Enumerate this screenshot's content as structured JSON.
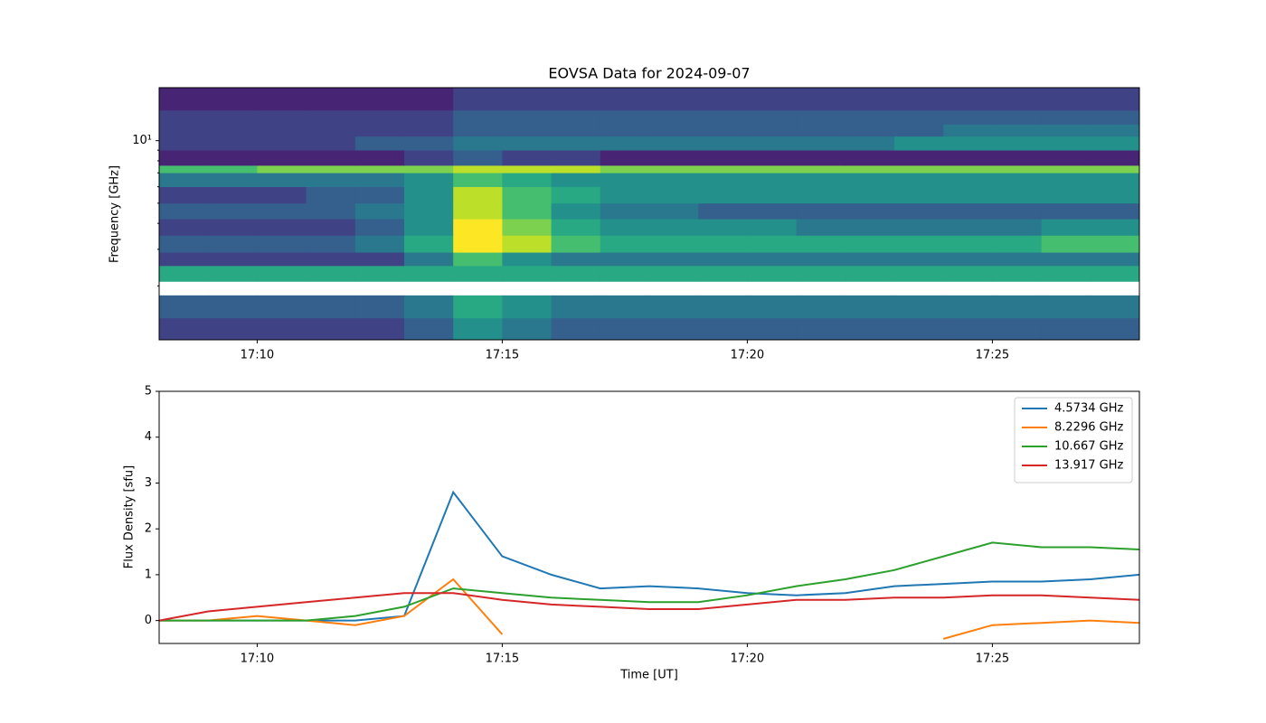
{
  "chart_data": [
    {
      "type": "heatmap",
      "title": "EOVSA Data for 2024-09-07",
      "ylabel": "Frequency [GHz]",
      "yscale": "log",
      "colormap": "viridis",
      "zlim": [
        0,
        10
      ],
      "xlim": [
        "17:08",
        "17:28"
      ],
      "xticks": [
        "17:10",
        "17:15",
        "17:20",
        "17:25"
      ],
      "ylim": [
        1.1,
        18
      ],
      "yticks": [
        {
          "value": 10,
          "label": "10¹"
        }
      ],
      "yminorticks": [
        2,
        3,
        4,
        5,
        6,
        7,
        8,
        9
      ],
      "x_bins": [
        "17:08",
        "17:09",
        "17:10",
        "17:11",
        "17:12",
        "17:13",
        "17:14",
        "17:15",
        "17:16",
        "17:17",
        "17:18",
        "17:19",
        "17:20",
        "17:21",
        "17:22",
        "17:23",
        "17:24",
        "17:25",
        "17:26",
        "17:27",
        "17:28"
      ],
      "y_bins": [
        1.1,
        1.4,
        1.8,
        2.1,
        2.5,
        2.9,
        3.5,
        4.2,
        5,
        6,
        7,
        7.6,
        9,
        10.5,
        12,
        14,
        18
      ],
      "z": [
        [
          2,
          2,
          2,
          2,
          2,
          3,
          5,
          4,
          3,
          3,
          3,
          3,
          3,
          3,
          3,
          3,
          3,
          3,
          3,
          3
        ],
        [
          3,
          3,
          3,
          3,
          3,
          4,
          6,
          5,
          4,
          4,
          4,
          4,
          4,
          4,
          4,
          4,
          4,
          4,
          4,
          4
        ],
        [
          null,
          null,
          null,
          null,
          null,
          null,
          null,
          null,
          null,
          null,
          null,
          null,
          null,
          null,
          null,
          null,
          null,
          null,
          null,
          null
        ],
        [
          6,
          6,
          6,
          6,
          6,
          6,
          6,
          6,
          6,
          6,
          6,
          6,
          6,
          6,
          6,
          6,
          6,
          6,
          6,
          6
        ],
        [
          2,
          2,
          2,
          2,
          2,
          4,
          7,
          5,
          4,
          4,
          4,
          4,
          4,
          4,
          4,
          4,
          4,
          4,
          4,
          4
        ],
        [
          3,
          3,
          3,
          3,
          4,
          6,
          10,
          9,
          7,
          6,
          6,
          6,
          6,
          6,
          6,
          6,
          6,
          6,
          7,
          7
        ],
        [
          2,
          2,
          2,
          2,
          3,
          5,
          10,
          8,
          6,
          5,
          5,
          5,
          5,
          4,
          4,
          4,
          4,
          4,
          5,
          5
        ],
        [
          3,
          3,
          3,
          3,
          4,
          5,
          9,
          7,
          5,
          4,
          4,
          3,
          3,
          3,
          3,
          3,
          3,
          3,
          3,
          3
        ],
        [
          2,
          2,
          2,
          3,
          3,
          5,
          9,
          7,
          6,
          5,
          5,
          5,
          5,
          5,
          5,
          5,
          5,
          5,
          5,
          5
        ],
        [
          4,
          4,
          4,
          4,
          4,
          5,
          7,
          6,
          5,
          5,
          5,
          5,
          5,
          5,
          5,
          5,
          5,
          5,
          5,
          5
        ],
        [
          7,
          7,
          8,
          8,
          8,
          8,
          9,
          9,
          9,
          8,
          8,
          8,
          8,
          8,
          8,
          8,
          8,
          8,
          8,
          8
        ],
        [
          1,
          1,
          1,
          1,
          1,
          2,
          3,
          2,
          2,
          1,
          1,
          1,
          1,
          1,
          1,
          1,
          1,
          1,
          1,
          1
        ],
        [
          2,
          2,
          2,
          2,
          3,
          3,
          4,
          4,
          4,
          4,
          4,
          4,
          4,
          4,
          4,
          5,
          5,
          5,
          5,
          5
        ],
        [
          2,
          2,
          2,
          2,
          2,
          2,
          3,
          3,
          3,
          3,
          3,
          3,
          3,
          3,
          3,
          3,
          4,
          4,
          4,
          4
        ],
        [
          2,
          2,
          2,
          2,
          2,
          2,
          3,
          3,
          3,
          3,
          3,
          3,
          3,
          3,
          3,
          3,
          3,
          3,
          3,
          3
        ],
        [
          1,
          1,
          1,
          1,
          1,
          1,
          2,
          2,
          2,
          2,
          2,
          2,
          2,
          2,
          2,
          2,
          2,
          2,
          2,
          2
        ]
      ]
    },
    {
      "type": "line",
      "xlabel": "Time [UT]",
      "ylabel": "Flux Density [sfu]",
      "legend": "upper right",
      "xlim": [
        "17:08",
        "17:28"
      ],
      "xticks": [
        "17:10",
        "17:15",
        "17:20",
        "17:25"
      ],
      "ylim": [
        -0.5,
        5
      ],
      "yticks": [
        0,
        1,
        2,
        3,
        4,
        5
      ],
      "x": [
        "17:08",
        "17:09",
        "17:10",
        "17:11",
        "17:12",
        "17:13",
        "17:14",
        "17:15",
        "17:16",
        "17:17",
        "17:18",
        "17:19",
        "17:20",
        "17:21",
        "17:22",
        "17:23",
        "17:24",
        "17:25",
        "17:26",
        "17:27",
        "17:28"
      ],
      "series": [
        {
          "name": "4.5734 GHz",
          "color": "#1f77b4",
          "values": [
            0,
            0,
            0,
            0,
            0,
            0.1,
            2.8,
            1.4,
            1.0,
            0.7,
            0.75,
            0.7,
            0.6,
            0.55,
            0.6,
            0.75,
            0.8,
            0.85,
            0.85,
            0.9,
            1.0
          ]
        },
        {
          "name": "8.2296 GHz",
          "color": "#ff7f0e",
          "values": [
            0,
            0,
            0.1,
            0,
            -0.1,
            0.1,
            0.9,
            -0.3,
            null,
            null,
            null,
            null,
            null,
            null,
            null,
            null,
            -0.4,
            -0.1,
            -0.05,
            0,
            -0.05
          ]
        },
        {
          "name": "10.667 GHz",
          "color": "#2ca02c",
          "values": [
            0,
            0,
            0,
            0,
            0.1,
            0.3,
            0.7,
            0.6,
            0.5,
            0.45,
            0.4,
            0.4,
            0.55,
            0.75,
            0.9,
            1.1,
            1.4,
            1.7,
            1.6,
            1.6,
            1.55
          ]
        },
        {
          "name": "13.917 GHz",
          "color": "#d62728",
          "values": [
            0,
            0.2,
            0.3,
            0.4,
            0.5,
            0.6,
            0.6,
            0.45,
            0.35,
            0.3,
            0.25,
            0.25,
            0.35,
            0.45,
            0.45,
            0.5,
            0.5,
            0.55,
            0.55,
            0.5,
            0.45
          ]
        }
      ]
    }
  ]
}
